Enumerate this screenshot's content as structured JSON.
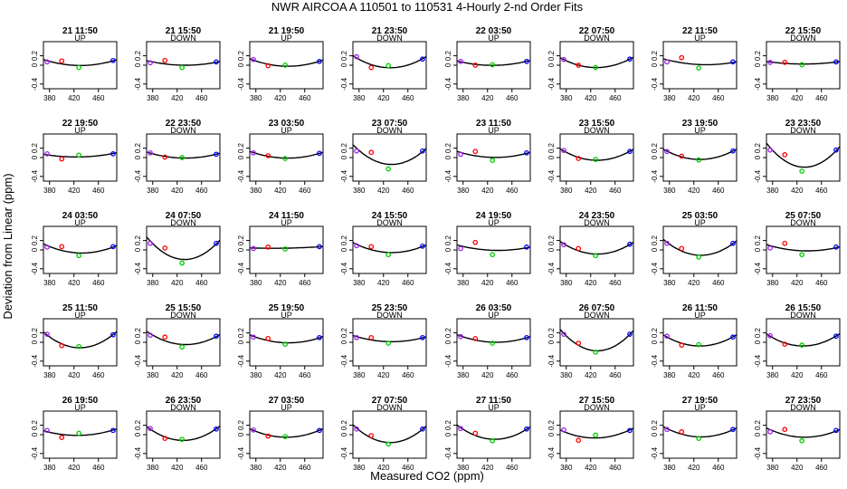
{
  "chart_data": {
    "type": "scatter",
    "title": "NWR   AIRCOA A   110501 to 110531   4-Hourly 2-nd Order Fits",
    "xlabel": "Measured CO2 (ppm)",
    "ylabel": "Deviation from Linear (ppm)",
    "xlim": [
      370,
      490
    ],
    "ylim": [
      -0.5,
      0.5
    ],
    "x_ticks": [
      380,
      420,
      460
    ],
    "y_ticks": [
      -0.4,
      0,
      0.2
    ],
    "x_tick_labels": [
      "380",
      "420",
      "460"
    ],
    "y_tick_labels": [
      "-0.4",
      "0",
      "0.2"
    ],
    "grid": false,
    "point_x": [
      376,
      400,
      428,
      484
    ],
    "point_colors": [
      "#a020f0",
      "#ff0000",
      "#00cc00",
      "#0000ff"
    ],
    "curve_color": "#000000",
    "panels": [
      {
        "title": "21 11:50",
        "direction": "UP",
        "y": [
          0.07,
          0.09,
          -0.05,
          0.1
        ]
      },
      {
        "title": "21 15:50",
        "direction": "DOWN",
        "y": [
          0.05,
          0.1,
          -0.05,
          0.07
        ]
      },
      {
        "title": "21 19:50",
        "direction": "UP",
        "y": [
          0.12,
          -0.01,
          0.0,
          0.08
        ]
      },
      {
        "title": "21 23:50",
        "direction": "DOWN",
        "y": [
          0.18,
          -0.05,
          -0.01,
          0.13
        ]
      },
      {
        "title": "22 03:50",
        "direction": "UP",
        "y": [
          0.08,
          0.0,
          0.01,
          0.08
        ]
      },
      {
        "title": "22 07:50",
        "direction": "DOWN",
        "y": [
          0.12,
          0.0,
          -0.05,
          0.13
        ]
      },
      {
        "title": "22 11:50",
        "direction": "UP",
        "y": [
          0.07,
          0.16,
          -0.06,
          0.07
        ]
      },
      {
        "title": "22 15:50",
        "direction": "DOWN",
        "y": [
          0.06,
          0.06,
          0.01,
          0.07
        ]
      },
      {
        "title": "22 19:50",
        "direction": "UP",
        "y": [
          0.08,
          -0.03,
          0.05,
          0.08
        ]
      },
      {
        "title": "22 23:50",
        "direction": "DOWN",
        "y": [
          0.1,
          0.01,
          0.0,
          0.07
        ]
      },
      {
        "title": "23 03:50",
        "direction": "UP",
        "y": [
          0.1,
          0.04,
          -0.02,
          0.09
        ]
      },
      {
        "title": "23 07:50",
        "direction": "DOWN",
        "y": [
          0.14,
          0.11,
          -0.24,
          0.14
        ]
      },
      {
        "title": "23 11:50",
        "direction": "UP",
        "y": [
          0.07,
          0.13,
          -0.06,
          0.1
        ]
      },
      {
        "title": "23 15:50",
        "direction": "DOWN",
        "y": [
          0.15,
          -0.02,
          -0.04,
          0.13
        ]
      },
      {
        "title": "23 19:50",
        "direction": "UP",
        "y": [
          0.13,
          0.03,
          -0.05,
          0.14
        ]
      },
      {
        "title": "23 23:50",
        "direction": "DOWN",
        "y": [
          0.16,
          0.06,
          -0.29,
          0.16
        ]
      },
      {
        "title": "24 03:50",
        "direction": "UP",
        "y": [
          0.06,
          0.07,
          -0.12,
          0.07
        ]
      },
      {
        "title": "24 07:50",
        "direction": "DOWN",
        "y": [
          0.14,
          0.04,
          -0.28,
          0.14
        ]
      },
      {
        "title": "24 11:50",
        "direction": "UP",
        "y": [
          0.03,
          0.06,
          0.02,
          0.07
        ]
      },
      {
        "title": "24 15:50",
        "direction": "DOWN",
        "y": [
          0.09,
          0.07,
          -0.1,
          0.08
        ]
      },
      {
        "title": "24 19:50",
        "direction": "UP",
        "y": [
          0.03,
          0.16,
          -0.1,
          0.06
        ]
      },
      {
        "title": "24 23:50",
        "direction": "DOWN",
        "y": [
          0.11,
          0.03,
          -0.12,
          0.12
        ]
      },
      {
        "title": "25 03:50",
        "direction": "UP",
        "y": [
          0.14,
          0.03,
          -0.15,
          0.14
        ]
      },
      {
        "title": "25 07:50",
        "direction": "DOWN",
        "y": [
          0.04,
          0.14,
          -0.1,
          0.06
        ]
      },
      {
        "title": "25 11:50",
        "direction": "UP",
        "y": [
          0.17,
          -0.07,
          -0.09,
          0.16
        ]
      },
      {
        "title": "25 15:50",
        "direction": "DOWN",
        "y": [
          0.15,
          0.11,
          -0.1,
          0.13
        ]
      },
      {
        "title": "25 19:50",
        "direction": "UP",
        "y": [
          0.11,
          0.08,
          -0.04,
          0.1
        ]
      },
      {
        "title": "25 23:50",
        "direction": "DOWN",
        "y": [
          0.1,
          0.1,
          -0.02,
          0.1
        ]
      },
      {
        "title": "26 03:50",
        "direction": "UP",
        "y": [
          0.12,
          0.08,
          -0.02,
          0.1
        ]
      },
      {
        "title": "26 07:50",
        "direction": "DOWN",
        "y": [
          0.17,
          -0.02,
          -0.21,
          0.17
        ]
      },
      {
        "title": "26 11:50",
        "direction": "UP",
        "y": [
          0.13,
          -0.06,
          -0.05,
          0.11
        ]
      },
      {
        "title": "26 15:50",
        "direction": "DOWN",
        "y": [
          0.14,
          -0.04,
          -0.06,
          0.13
        ]
      },
      {
        "title": "26 19:50",
        "direction": "UP",
        "y": [
          0.09,
          -0.06,
          0.03,
          0.09
        ]
      },
      {
        "title": "26 23:50",
        "direction": "DOWN",
        "y": [
          0.13,
          -0.08,
          -0.1,
          0.12
        ]
      },
      {
        "title": "27 03:50",
        "direction": "UP",
        "y": [
          0.1,
          -0.03,
          -0.04,
          0.09
        ]
      },
      {
        "title": "27 07:50",
        "direction": "DOWN",
        "y": [
          0.12,
          -0.02,
          -0.2,
          0.12
        ]
      },
      {
        "title": "27 11:50",
        "direction": "UP",
        "y": [
          0.13,
          0.03,
          -0.13,
          0.12
        ]
      },
      {
        "title": "27 15:50",
        "direction": "DOWN",
        "y": [
          0.1,
          -0.12,
          -0.01,
          0.09
        ]
      },
      {
        "title": "27 19:50",
        "direction": "UP",
        "y": [
          0.11,
          0.06,
          -0.08,
          0.11
        ]
      },
      {
        "title": "27 23:50",
        "direction": "DOWN",
        "y": [
          0.06,
          0.11,
          -0.13,
          0.09
        ]
      }
    ]
  }
}
